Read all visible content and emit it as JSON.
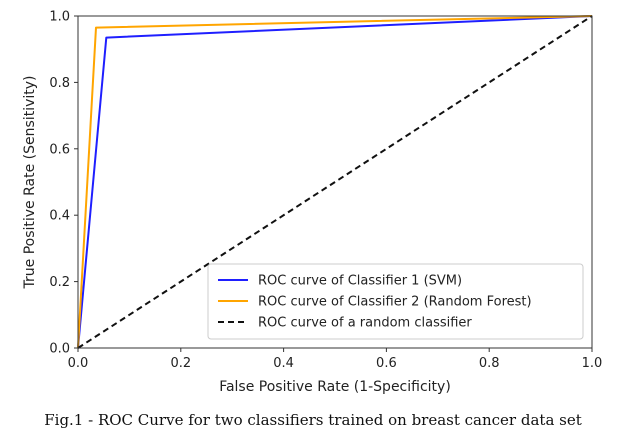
{
  "caption": "Fig.1 - ROC Curve for two classifiers trained on breast cancer data set",
  "chart_data": {
    "type": "line",
    "title": "",
    "xlabel": "False Positive Rate (1-Specificity)",
    "ylabel": "True Positive Rate (Sensitivity)",
    "xlim": [
      0,
      1
    ],
    "ylim": [
      0,
      1
    ],
    "xticks": [
      0.0,
      0.2,
      0.4,
      0.6,
      0.8,
      1.0
    ],
    "yticks": [
      0.0,
      0.2,
      0.4,
      0.6,
      0.8,
      1.0
    ],
    "xtick_labels": [
      "0.0",
      "0.2",
      "0.4",
      "0.6",
      "0.8",
      "1.0"
    ],
    "ytick_labels": [
      "0.0",
      "0.2",
      "0.4",
      "0.6",
      "0.8",
      "1.0"
    ],
    "grid": false,
    "legend_position": "lower-right",
    "series": [
      {
        "name": "ROC curve of Classifier 1 (SVM)",
        "color": "#1f1fff",
        "style": "solid",
        "x": [
          0.0,
          0.055,
          1.0
        ],
        "y": [
          0.0,
          0.935,
          1.0
        ]
      },
      {
        "name": "ROC curve of Classifier 2 (Random Forest)",
        "color": "#ffa500",
        "style": "solid",
        "x": [
          0.0,
          0.035,
          1.0
        ],
        "y": [
          0.0,
          0.965,
          1.0
        ]
      },
      {
        "name": "ROC curve of a random classifier",
        "color": "#111111",
        "style": "dashed",
        "x": [
          0.0,
          1.0
        ],
        "y": [
          0.0,
          1.0
        ]
      }
    ]
  }
}
